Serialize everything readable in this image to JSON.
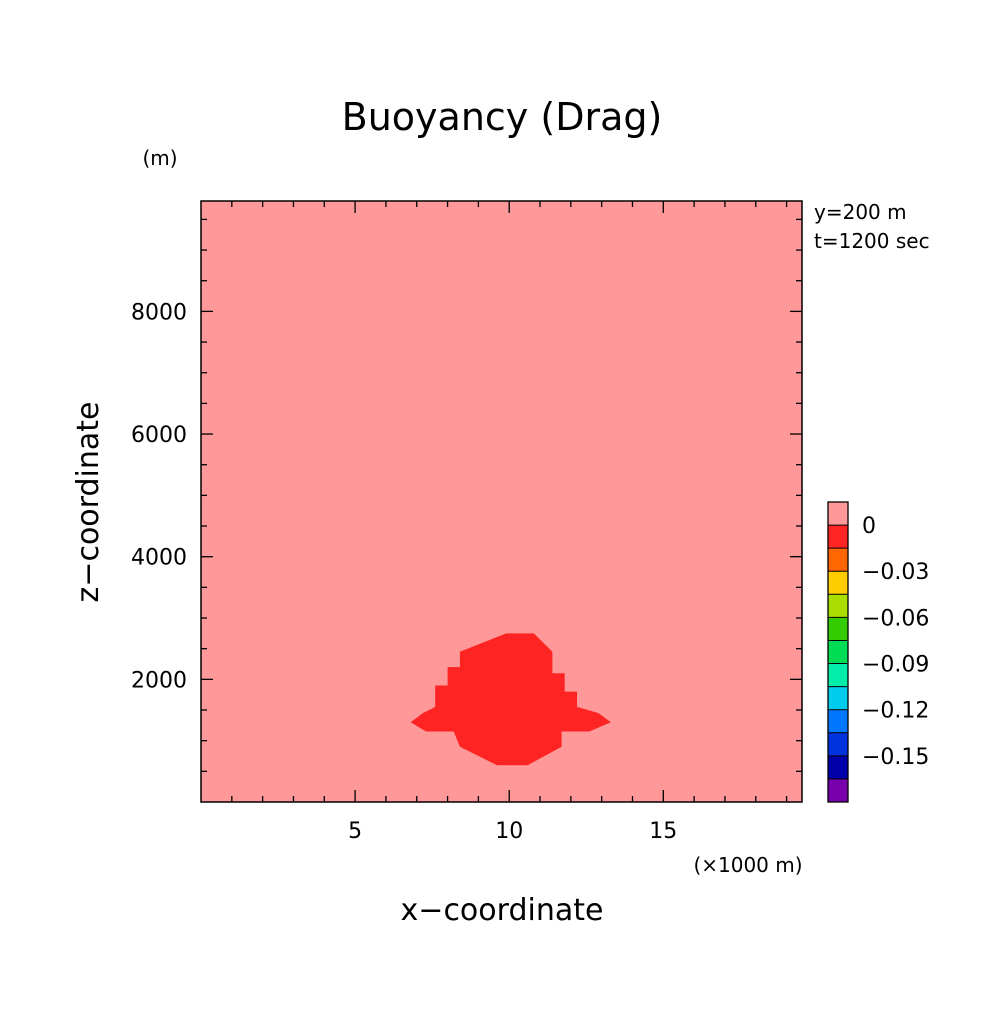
{
  "chart_data": {
    "type": "heatmap",
    "title": "Buoyancy (Drag)",
    "xlabel": "x−coordinate",
    "ylabel": "z−coordinate",
    "x_unit": "(×1000 m)",
    "y_unit": "(m)",
    "xlim": [
      0,
      19.5
    ],
    "ylim": [
      0,
      9800
    ],
    "x_ticks": [
      5,
      10,
      15
    ],
    "y_ticks": [
      2000,
      4000,
      6000,
      8000
    ],
    "x_tick_labels": [
      "5",
      "10",
      "15"
    ],
    "y_tick_labels": [
      "2000",
      "4000",
      "6000",
      "8000"
    ],
    "annotations": [
      "y=200 m",
      "t=1200 sec"
    ],
    "background_level": "above 0",
    "background_color": "#FF9999",
    "region": {
      "level": "0 to -0.015",
      "color": "#FF2424",
      "boundary": [
        [
          9.6,
          600
        ],
        [
          10.6,
          600
        ],
        [
          11.7,
          900
        ],
        [
          11.7,
          1150
        ],
        [
          12.6,
          1150
        ],
        [
          13.3,
          1300
        ],
        [
          12.9,
          1450
        ],
        [
          12.2,
          1550
        ],
        [
          12.2,
          1800
        ],
        [
          11.8,
          1800
        ],
        [
          11.8,
          2100
        ],
        [
          11.4,
          2100
        ],
        [
          11.4,
          2450
        ],
        [
          10.8,
          2750
        ],
        [
          9.9,
          2750
        ],
        [
          8.4,
          2450
        ],
        [
          8.4,
          2200
        ],
        [
          8.0,
          2200
        ],
        [
          8.0,
          1900
        ],
        [
          7.6,
          1900
        ],
        [
          7.6,
          1550
        ],
        [
          7.2,
          1450
        ],
        [
          6.8,
          1300
        ],
        [
          7.3,
          1150
        ],
        [
          8.2,
          1150
        ],
        [
          8.4,
          900
        ]
      ]
    },
    "colorbar": {
      "levels": [
        {
          "color": "#FF9999"
        },
        {
          "color": "#FF2424"
        },
        {
          "color": "#FF6600"
        },
        {
          "color": "#FFCC00"
        },
        {
          "color": "#AADD00"
        },
        {
          "color": "#33CC00"
        },
        {
          "color": "#00DD55"
        },
        {
          "color": "#00EEAA"
        },
        {
          "color": "#00CCEE"
        },
        {
          "color": "#0077FF"
        },
        {
          "color": "#0033DD"
        },
        {
          "color": "#0000AA"
        },
        {
          "color": "#7700AA"
        }
      ],
      "labels": [
        "0",
        "−0.03",
        "−0.06",
        "−0.09",
        "−0.12",
        "−0.15"
      ],
      "label_levels": [
        0,
        -0.03,
        -0.06,
        -0.09,
        -0.12,
        -0.15
      ]
    }
  }
}
